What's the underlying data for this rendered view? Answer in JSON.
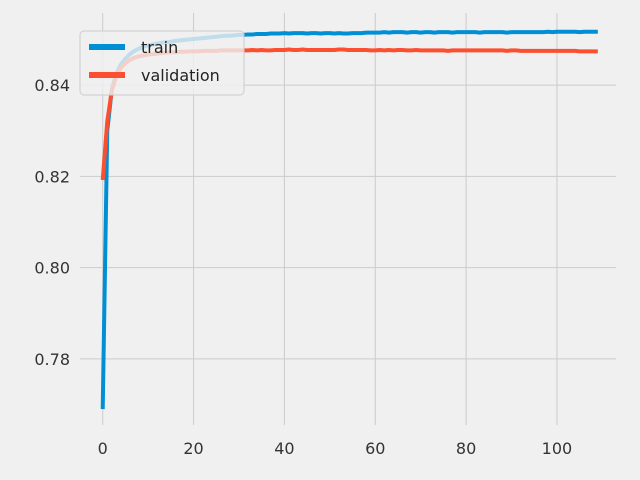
{
  "chart_data": {
    "type": "line",
    "title": "",
    "xlabel": "",
    "ylabel": "",
    "xlim": [
      -5,
      113
    ],
    "ylim": [
      0.7655,
      0.8558
    ],
    "x_ticks": [
      0,
      20,
      40,
      60,
      80,
      100
    ],
    "x_tick_labels": [
      "0",
      "20",
      "40",
      "60",
      "80",
      "100"
    ],
    "y_ticks": [
      0.78,
      0.8,
      0.82,
      0.84
    ],
    "y_tick_labels": [
      "0.78",
      "0.80",
      "0.82",
      "0.84"
    ],
    "grid": true,
    "legend_position": "top-left",
    "x": [
      0,
      1,
      2,
      3,
      4,
      5,
      6,
      7,
      8,
      9,
      10,
      11,
      12,
      13,
      14,
      15,
      16,
      17,
      18,
      19,
      20,
      21,
      22,
      23,
      24,
      25,
      26,
      27,
      28,
      29,
      30,
      31,
      32,
      33,
      34,
      35,
      36,
      37,
      38,
      39,
      40,
      41,
      42,
      43,
      44,
      45,
      46,
      47,
      48,
      49,
      50,
      51,
      52,
      53,
      54,
      55,
      56,
      57,
      58,
      59,
      60,
      61,
      62,
      63,
      64,
      65,
      66,
      67,
      68,
      69,
      70,
      71,
      72,
      73,
      74,
      75,
      76,
      77,
      78,
      79,
      80,
      81,
      82,
      83,
      84,
      85,
      86,
      87,
      88,
      89,
      90,
      91,
      92,
      93,
      94,
      95,
      96,
      97,
      98,
      99,
      100,
      101,
      102,
      103,
      104,
      105,
      106,
      107,
      108,
      109
    ],
    "series": [
      {
        "name": "train",
        "color": "#008fd5",
        "values": [
          0.769,
          0.83,
          0.839,
          0.8425,
          0.8445,
          0.8458,
          0.8468,
          0.8475,
          0.848,
          0.8484,
          0.8487,
          0.8489,
          0.8491,
          0.8493,
          0.8494,
          0.8495,
          0.8497,
          0.8498,
          0.8499,
          0.85,
          0.8501,
          0.8502,
          0.8503,
          0.8504,
          0.8505,
          0.8506,
          0.8507,
          0.8508,
          0.8508,
          0.8509,
          0.851,
          0.851,
          0.8511,
          0.8511,
          0.8512,
          0.8512,
          0.8512,
          0.8513,
          0.8513,
          0.8513,
          0.8514,
          0.8513,
          0.8514,
          0.8514,
          0.8514,
          0.8513,
          0.8514,
          0.8514,
          0.8513,
          0.8514,
          0.8514,
          0.8513,
          0.8514,
          0.8513,
          0.8513,
          0.8514,
          0.8514,
          0.8514,
          0.8515,
          0.8515,
          0.8515,
          0.8515,
          0.8516,
          0.8515,
          0.8516,
          0.8516,
          0.8516,
          0.8515,
          0.8516,
          0.8516,
          0.8515,
          0.8516,
          0.8516,
          0.8515,
          0.8516,
          0.8516,
          0.8516,
          0.8515,
          0.8516,
          0.8516,
          0.8516,
          0.8516,
          0.8516,
          0.8515,
          0.8516,
          0.8516,
          0.8516,
          0.8516,
          0.8516,
          0.8515,
          0.8516,
          0.8516,
          0.8516,
          0.8516,
          0.8516,
          0.8516,
          0.8516,
          0.8516,
          0.8517,
          0.8516,
          0.8517,
          0.8517,
          0.8517,
          0.8517,
          0.8517,
          0.8516,
          0.8517,
          0.8517,
          0.8517,
          0.8517
        ]
      },
      {
        "name": "validation",
        "color": "#fc4f30",
        "values": [
          0.8192,
          0.832,
          0.8388,
          0.842,
          0.8438,
          0.8448,
          0.8455,
          0.846,
          0.8463,
          0.8465,
          0.8467,
          0.8468,
          0.8469,
          0.847,
          0.8471,
          0.8472,
          0.8472,
          0.8473,
          0.8473,
          0.8474,
          0.8474,
          0.8474,
          0.8475,
          0.8475,
          0.8475,
          0.8475,
          0.8476,
          0.8476,
          0.8476,
          0.8476,
          0.8476,
          0.8476,
          0.8476,
          0.8477,
          0.8476,
          0.8477,
          0.8476,
          0.8476,
          0.8477,
          0.8477,
          0.8477,
          0.8478,
          0.8477,
          0.8477,
          0.8478,
          0.8477,
          0.8477,
          0.8477,
          0.8477,
          0.8477,
          0.8477,
          0.8477,
          0.8478,
          0.8478,
          0.8477,
          0.8477,
          0.8477,
          0.8477,
          0.8477,
          0.8476,
          0.8476,
          0.8477,
          0.8476,
          0.8477,
          0.8476,
          0.8477,
          0.8477,
          0.8476,
          0.8476,
          0.8477,
          0.8476,
          0.8476,
          0.8476,
          0.8476,
          0.8476,
          0.8476,
          0.8475,
          0.8476,
          0.8476,
          0.8476,
          0.8476,
          0.8476,
          0.8476,
          0.8476,
          0.8476,
          0.8476,
          0.8476,
          0.8476,
          0.8476,
          0.8475,
          0.8476,
          0.8476,
          0.8475,
          0.8475,
          0.8475,
          0.8475,
          0.8475,
          0.8475,
          0.8475,
          0.8475,
          0.8475,
          0.8475,
          0.8475,
          0.8475,
          0.8475,
          0.8474,
          0.8474,
          0.8474,
          0.8474,
          0.8474
        ]
      }
    ]
  }
}
